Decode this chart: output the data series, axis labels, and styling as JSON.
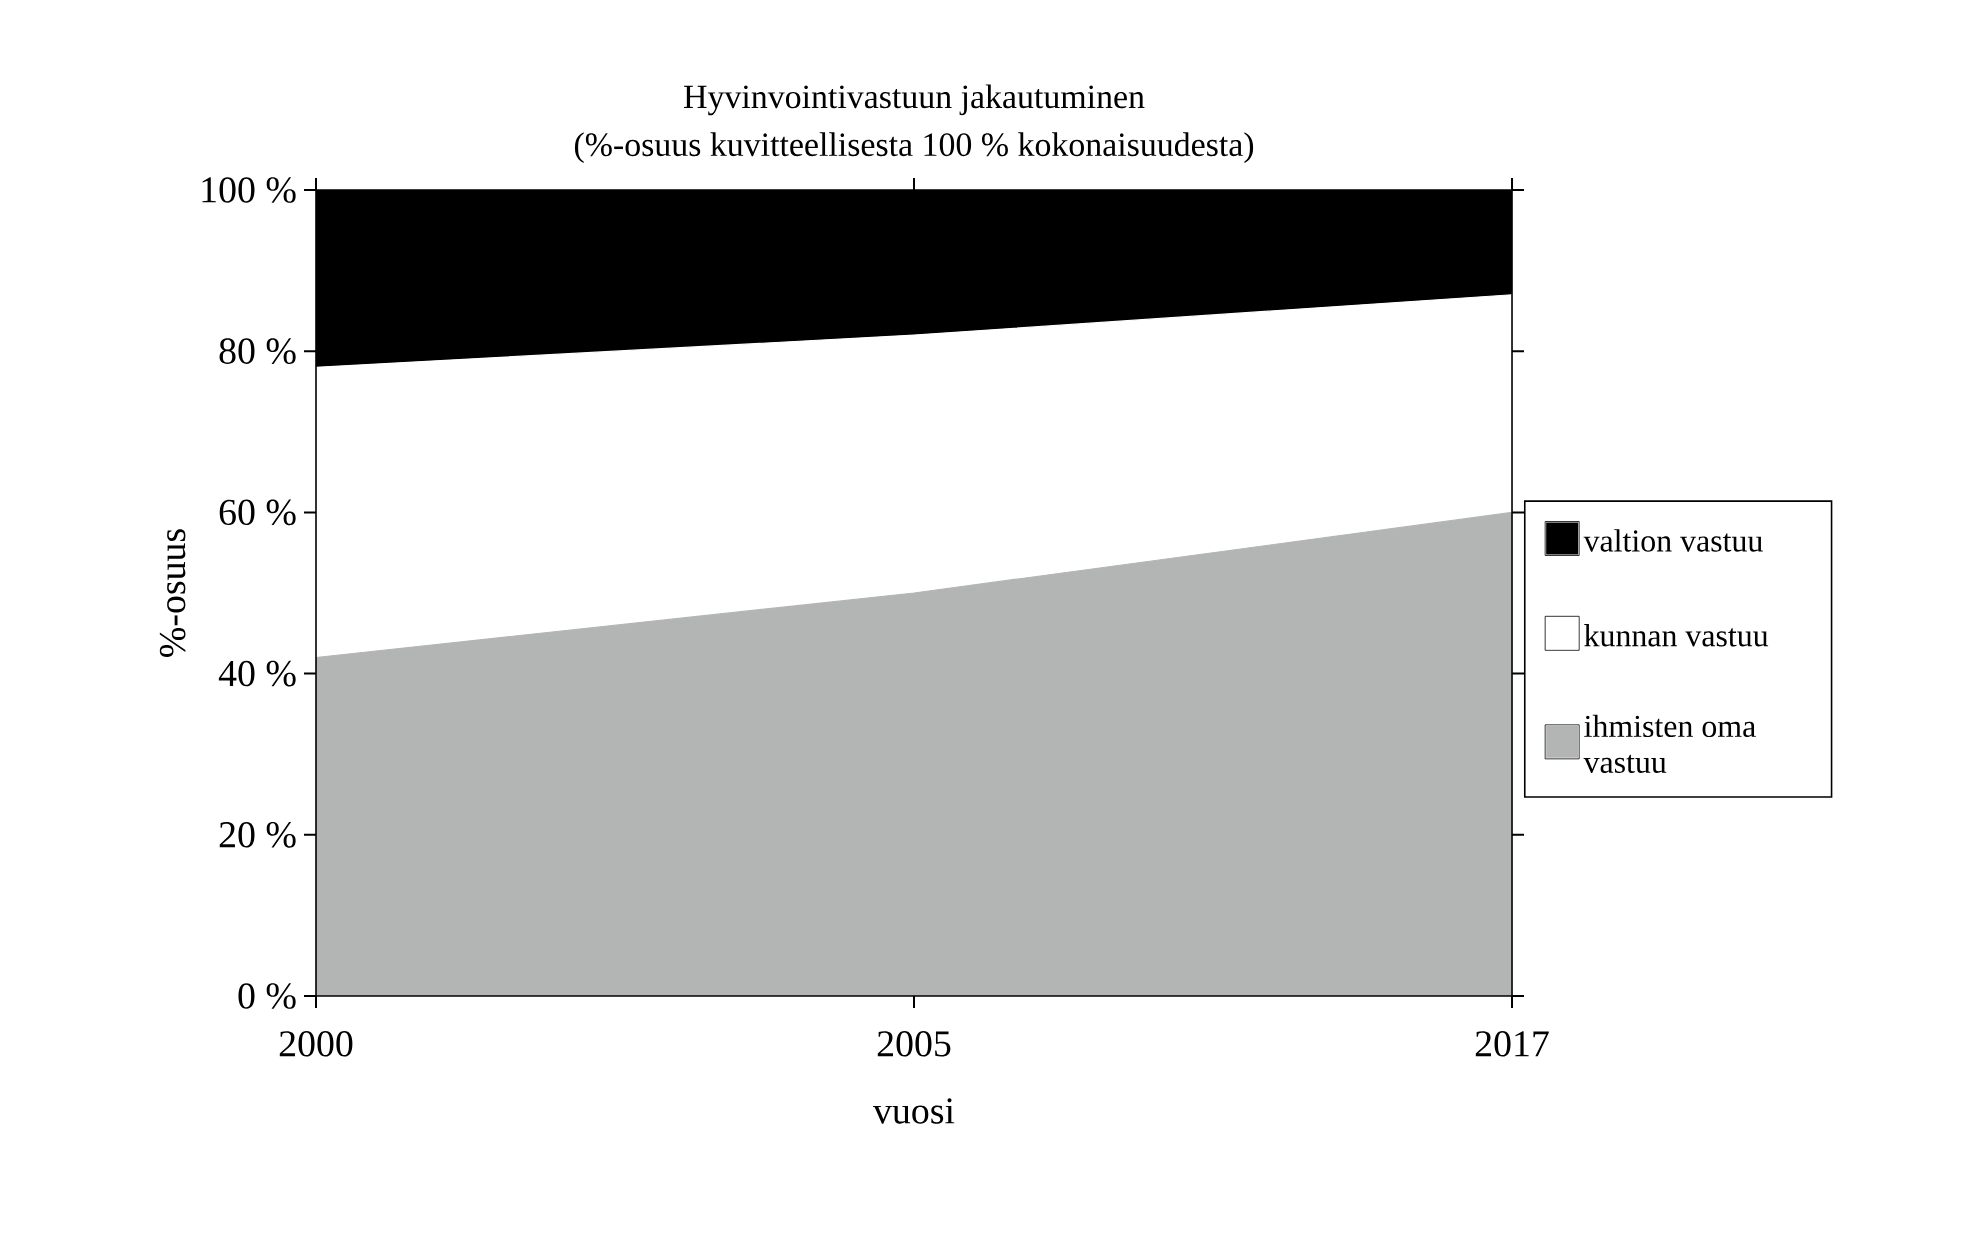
{
  "chart_data": {
    "type": "area",
    "title": "Hyvinvointivastuun jakautuminen",
    "subtitle": "(%-osuus kuvitteellisesta 100 % kokonaisuudesta)",
    "xlabel": "vuosi",
    "ylabel": "%-osuus",
    "categories": [
      "2000",
      "2005",
      "2017"
    ],
    "series": [
      {
        "name": "ihmisten oma vastuu",
        "color": "#b3b5b5",
        "values": [
          42,
          50,
          60
        ]
      },
      {
        "name": "kunnan vastuu",
        "color": "#ffffff",
        "values": [
          36,
          32,
          27
        ]
      },
      {
        "name": "valtion vastuu",
        "color": "#000000",
        "values": [
          22,
          18,
          13
        ]
      }
    ],
    "stacked": true,
    "ylim": [
      0,
      100
    ],
    "yticks": [
      {
        "value": 0,
        "label": "0 %"
      },
      {
        "value": 20,
        "label": "20 %"
      },
      {
        "value": 40,
        "label": "40 %"
      },
      {
        "value": 60,
        "label": "60 %"
      },
      {
        "value": 80,
        "label": "80 %"
      },
      {
        "value": 100,
        "label": "100 %"
      }
    ],
    "legend": "right"
  }
}
